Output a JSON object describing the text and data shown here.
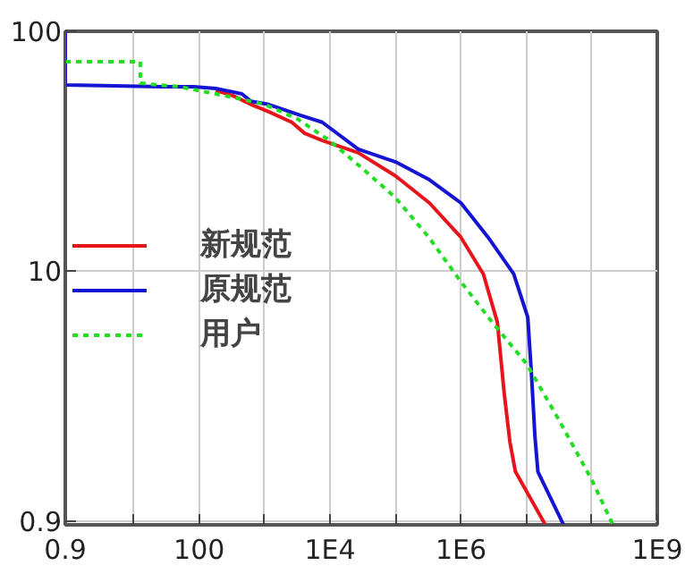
{
  "chart_data": {
    "type": "line",
    "xlim": [
      0.9,
      1000000000
    ],
    "ylim": [
      0.87,
      100
    ],
    "xticks": [
      0.9,
      {
        "value": 10,
        "label": null
      },
      100,
      {
        "value": 1000,
        "label": null
      },
      {
        "value": 10000,
        "label": "1E4"
      },
      {
        "value": 100000,
        "label": null
      },
      {
        "value": 1000000,
        "label": "1E6"
      },
      {
        "value": 10000000,
        "label": null
      },
      {
        "value": 100000000,
        "label": null
      },
      {
        "value": 1000000000,
        "label": "1E9"
      }
    ],
    "yticks": [
      0.9,
      10,
      100
    ],
    "log": "xy",
    "grid": true,
    "legend": "left",
    "marker": "none",
    "series": [
      {
        "name": "新规范",
        "color": "#e8141c",
        "x": [
          180,
          330,
          620,
          1150,
          2600,
          4100,
          7600,
          27000,
          100000,
          330000,
          1000000,
          2200000,
          3600000,
          4600000,
          5600000,
          6800000,
          19500000
        ],
        "values": [
          56.7,
          53.8,
          49.5,
          46.2,
          41.7,
          37.5,
          35,
          31.1,
          24.9,
          19.2,
          13.8,
          9.7,
          6.1,
          3.05,
          1.93,
          1.45,
          0.87
        ]
      },
      {
        "name": "原规范",
        "color": "#1414d2",
        "x": [
          0.9,
          0.9,
          27,
          83,
          180,
          450,
          620,
          1150,
          3500,
          7600,
          27000,
          100000,
          330000,
          1000000,
          2600000,
          6400000,
          10500000,
          12000000,
          13500000,
          15000000,
          37000000
        ],
        "values": [
          100,
          59.7,
          58.7,
          58.7,
          57.7,
          54.8,
          51,
          49.5,
          44.6,
          41.7,
          32.2,
          28.5,
          24,
          19.2,
          13.8,
          9.7,
          6.4,
          3.64,
          2.04,
          1.45,
          0.87
        ]
      },
      {
        "name": "用户",
        "color": "#22dd22",
        "line_style": "dotted",
        "x": [
          0.9,
          12.6,
          12.6,
          50,
          330,
          1000,
          3200,
          9800,
          30000,
          100000,
          330000,
          1000000,
          3000000,
          10000000,
          31000000,
          100000000,
          210000000
        ],
        "values": [
          74.7,
          74.7,
          60.7,
          58.7,
          53,
          49.5,
          43,
          35,
          27,
          20.2,
          13.7,
          9,
          6.1,
          4.1,
          2.4,
          1.34,
          0.87
        ]
      }
    ]
  }
}
